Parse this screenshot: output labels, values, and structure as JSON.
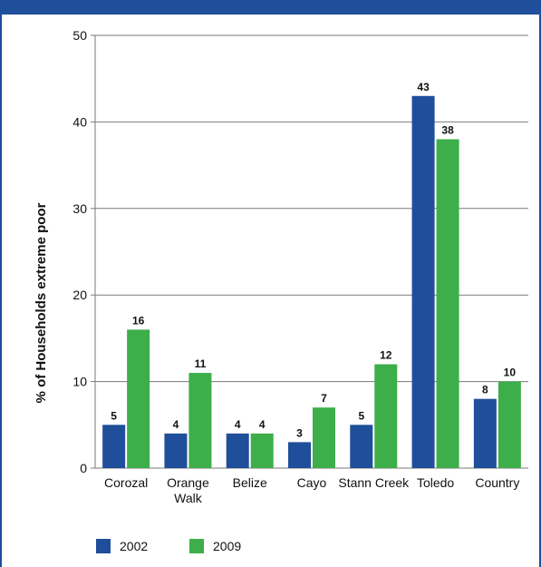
{
  "chart_data": {
    "type": "bar",
    "title": "",
    "xlabel": "",
    "ylabel": "% of Households extreme poor",
    "ylim": [
      0,
      50
    ],
    "yticks": [
      0,
      10,
      20,
      30,
      40,
      50
    ],
    "grid": true,
    "legend_position": "bottom-left",
    "categories": [
      [
        "Corozal"
      ],
      [
        "Orange",
        "Walk"
      ],
      [
        "Belize"
      ],
      [
        "Cayo"
      ],
      [
        "Stann Creek"
      ],
      [
        "Toledo"
      ],
      [
        "Country"
      ]
    ],
    "series": [
      {
        "name": "2002",
        "color": "#1f4e9a",
        "values": [
          5,
          4,
          4,
          3,
          5,
          43,
          8
        ]
      },
      {
        "name": "2009",
        "color": "#3dae49",
        "values": [
          16,
          11,
          4,
          7,
          12,
          38,
          10
        ]
      }
    ]
  }
}
